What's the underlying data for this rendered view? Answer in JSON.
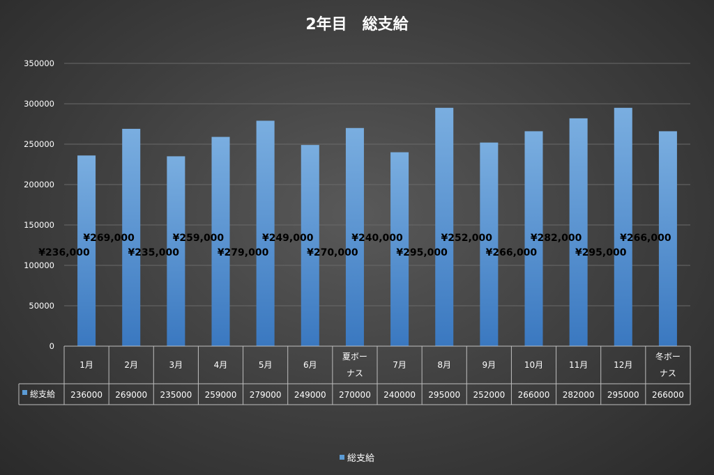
{
  "chart_data": {
    "type": "bar",
    "title": "2年目　総支給",
    "categories": [
      "1月",
      "2月",
      "3月",
      "4月",
      "5月",
      "6月",
      "夏ボーナス",
      "7月",
      "8月",
      "9月",
      "10月",
      "11月",
      "12月",
      "冬ボーナス"
    ],
    "category_lines": [
      [
        "1月"
      ],
      [
        "2月"
      ],
      [
        "3月"
      ],
      [
        "4月"
      ],
      [
        "5月"
      ],
      [
        "6月"
      ],
      [
        "夏ボー",
        "ナス"
      ],
      [
        "7月"
      ],
      [
        "8月"
      ],
      [
        "9月"
      ],
      [
        "10月"
      ],
      [
        "11月"
      ],
      [
        "12月"
      ],
      [
        "冬ボー",
        "ナス"
      ]
    ],
    "series": [
      {
        "name": "総支給",
        "values": [
          236000,
          269000,
          235000,
          259000,
          279000,
          249000,
          270000,
          240000,
          295000,
          252000,
          266000,
          282000,
          295000,
          266000
        ],
        "data_labels": [
          "¥236,000",
          "¥269,000",
          "¥235,000",
          "¥259,000",
          "¥279,000",
          "¥249,000",
          "¥270,000",
          "¥240,000",
          "¥295,000",
          "¥252,000",
          "¥266,000",
          "¥282,000",
          "¥295,000",
          "¥266,000"
        ],
        "table_values": [
          "236000",
          "269000",
          "235000",
          "259000",
          "279000",
          "249000",
          "270000",
          "240000",
          "295000",
          "252000",
          "266000",
          "282000",
          "295000",
          "266000"
        ]
      }
    ],
    "ylim": [
      0,
      350000
    ],
    "yticks": [
      "0",
      "50000",
      "100000",
      "150000",
      "200000",
      "250000",
      "300000",
      "350000"
    ],
    "grid": true,
    "legend": "bottom",
    "data_table": true,
    "colors": {
      "bar_top": "#7aaee0",
      "bar_bottom": "#3a78c0",
      "grid": "#6a6a6a",
      "table_border": "#bfbfbf",
      "legend_marker": "#5b9bd5"
    }
  }
}
